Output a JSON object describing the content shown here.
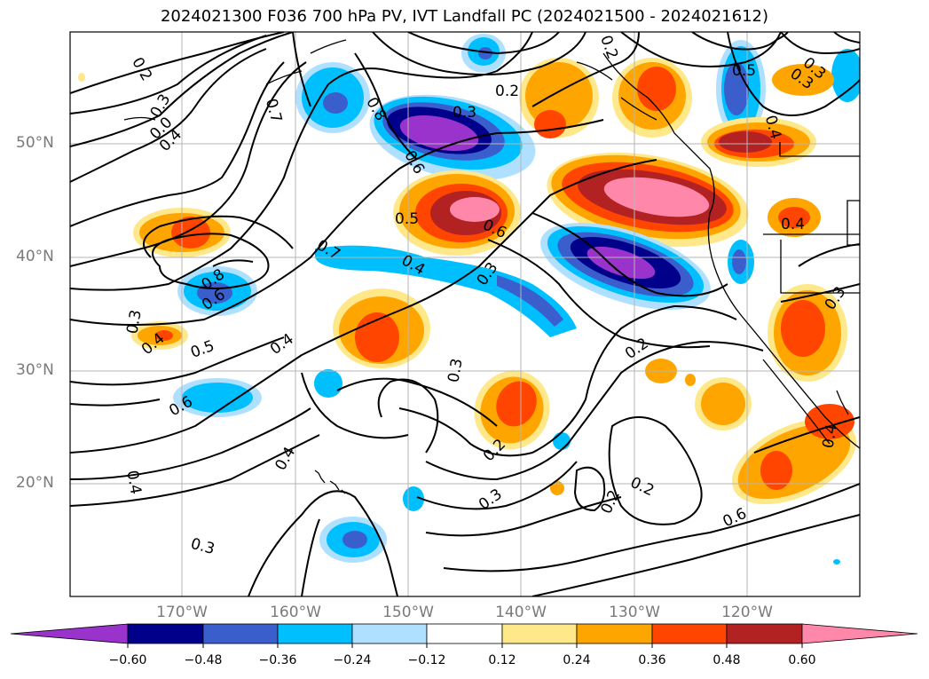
{
  "title": "2024021300 F036 700 hPa PV, IVT Landfall PC (2024021500 - 2024021612)",
  "latitude_labels": [
    "50°N",
    "40°N",
    "30°N",
    "20°N"
  ],
  "longitude_labels": [
    "170°W",
    "160°W",
    "150°W",
    "140°W",
    "130°W",
    "120°W"
  ],
  "colorbar": {
    "ticks": [
      "−0.60",
      "−0.48",
      "−0.36",
      "−0.24",
      "−0.12",
      "0.12",
      "0.24",
      "0.36",
      "0.48",
      "0.60"
    ],
    "colors": [
      "#9933cc",
      "#00008b",
      "#3a5fcd",
      "#00bfff",
      "#b0e0ff",
      "#ffffff",
      "#ffe88a",
      "#ffa500",
      "#ff4500",
      "#b22222",
      "#ff88aa"
    ]
  },
  "contour_labels": [
    "0.2",
    "0.3",
    "0.4",
    "0.7",
    "0.8",
    "0.3",
    "0.2",
    "0.5",
    "0.6",
    "0.3",
    "0.4",
    "0.7",
    "0.8",
    "0.6",
    "0.5",
    "0.6",
    "0.4",
    "0.3",
    "0.4",
    "0.3",
    "0.2",
    "0.3",
    "0.4",
    "0.4",
    "0.3",
    "0.2",
    "0.2",
    "0.2",
    "0.6",
    "0.5",
    "0.3",
    "0.4",
    "0.4",
    "0.3",
    "0.4",
    "0.2",
    "0.3",
    "0.6",
    "0.0"
  ]
}
